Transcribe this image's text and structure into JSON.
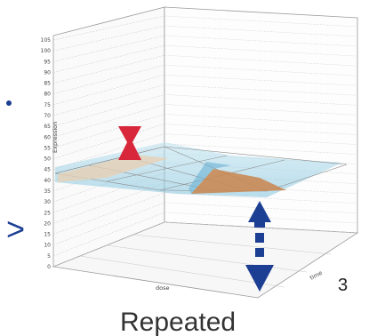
{
  "chart_data": {
    "type": "surface-3d",
    "ylabel": "Expression",
    "xlabel": "dose",
    "zlabel": "time",
    "y_ticks": [
      0,
      5,
      10,
      15,
      20,
      25,
      30,
      35,
      40,
      45,
      50,
      55,
      60,
      65,
      70,
      75,
      80,
      85,
      90,
      95,
      100,
      105
    ],
    "ylim": [
      0,
      105
    ],
    "grid": true,
    "surface_level": 40,
    "highlight_range": [
      30,
      44
    ],
    "colors": {
      "red_marker": "#d8263a",
      "blue_arrow": "#1d3f93",
      "surface_band": "#9fd3e6",
      "orange_fill": "#c98a55",
      "tan_fill": "#e8cfb2"
    }
  },
  "annotations": {
    "caption": "Repeated",
    "corner_label": "3",
    "side_symbol": ">"
  }
}
